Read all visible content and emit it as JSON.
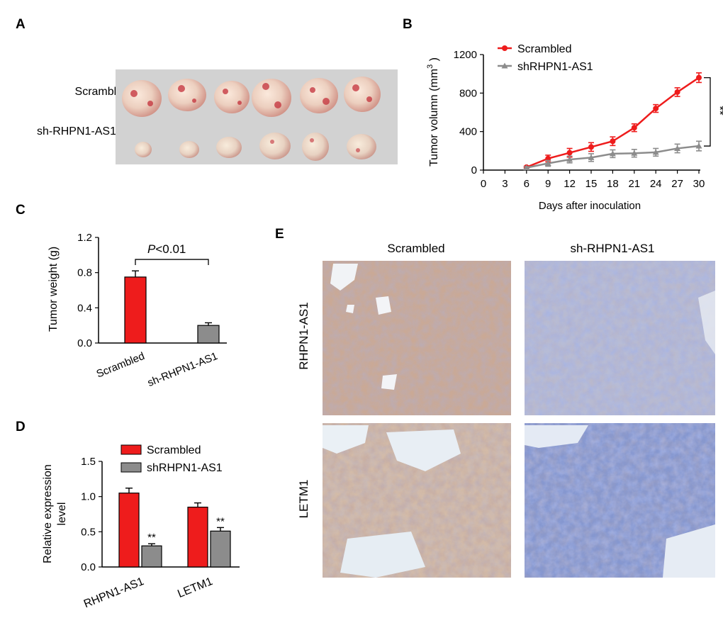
{
  "panels": {
    "A": {
      "letter": "A",
      "row_labels": [
        "Scrambled",
        "sh-RHPN1-AS1"
      ]
    },
    "B": {
      "letter": "B",
      "significance": "**"
    },
    "C": {
      "letter": "C",
      "pvalue_p": "P",
      "pvalue_rest": "<0.01"
    },
    "D": {
      "letter": "D",
      "significance": [
        "**",
        "**"
      ]
    },
    "E": {
      "letter": "E",
      "col_labels": [
        "Scrambled",
        "sh-RHPN1-AS1"
      ],
      "row_labels": [
        "RHPN1-AS1",
        "LETM1"
      ]
    }
  },
  "colors": {
    "scrambled": "#ee1c1c",
    "sh": "#8c8c8c",
    "ihc_brown": "#c8ab94",
    "ihc_blue": "#8f9fd0"
  },
  "chart_data": [
    {
      "id": "B",
      "type": "line",
      "x": [
        6,
        9,
        12,
        15,
        18,
        21,
        24,
        27,
        30
      ],
      "xticks": [
        "0",
        "3",
        "6",
        "9",
        "12",
        "15",
        "18",
        "21",
        "24",
        "27",
        "30"
      ],
      "xlim": [
        0,
        30
      ],
      "yticks": [
        "0",
        "400",
        "800",
        "1200"
      ],
      "ylim": [
        0,
        1200
      ],
      "xlabel": "Days after inoculation",
      "ylabel_main": "Tumor volumn (mm",
      "ylabel_sup": "3",
      "ylabel_tail": " )",
      "series": [
        {
          "name": "Scrambled",
          "marker": "circle",
          "color": "#ee1c1c",
          "values": [
            30,
            120,
            180,
            240,
            300,
            440,
            640,
            810,
            960
          ],
          "errors": [
            10,
            35,
            45,
            45,
            45,
            40,
            40,
            45,
            50
          ]
        },
        {
          "name": "shRHPN1-AS1",
          "marker": "triangle",
          "color": "#8c8c8c",
          "values": [
            25,
            70,
            110,
            130,
            170,
            175,
            185,
            225,
            250
          ],
          "errors": [
            10,
            30,
            35,
            40,
            40,
            40,
            40,
            45,
            50
          ]
        }
      ]
    },
    {
      "id": "C",
      "type": "bar",
      "categories": [
        "Scrambled",
        "sh-RHPN1-AS1"
      ],
      "values": [
        0.75,
        0.2
      ],
      "errors": [
        0.07,
        0.03
      ],
      "colors": [
        "#ee1c1c",
        "#8c8c8c"
      ],
      "yticks": [
        "0.0",
        "0.4",
        "0.8",
        "1.2"
      ],
      "ylim": [
        0,
        1.2
      ],
      "ylabel": "Tumor weight (g)"
    },
    {
      "id": "D",
      "type": "bar",
      "categories": [
        "RHPN1-AS1",
        "LETM1"
      ],
      "series": [
        {
          "name": "Scrambled",
          "color": "#ee1c1c",
          "values": [
            1.05,
            0.85
          ],
          "errors": [
            0.07,
            0.06
          ]
        },
        {
          "name": "shRHPN1-AS1",
          "color": "#8c8c8c",
          "values": [
            0.3,
            0.51
          ],
          "errors": [
            0.03,
            0.05
          ]
        }
      ],
      "yticks": [
        "0.0",
        "0.5",
        "1.0",
        "1.5"
      ],
      "ylim": [
        0,
        1.5
      ],
      "ylabel_line1": "Relative expression",
      "ylabel_line2": "level"
    }
  ]
}
